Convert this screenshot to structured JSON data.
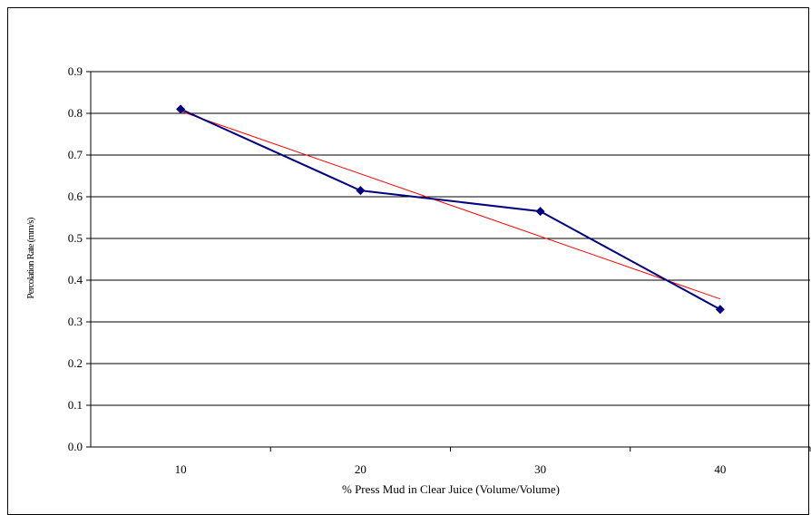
{
  "chart_data": {
    "type": "line",
    "title": "",
    "xlabel": "% Press Mud in Clear Juice (Volume/Volume)",
    "ylabel": "Percolation Rate (mm/s)",
    "categories": [
      "10",
      "20",
      "30",
      "40"
    ],
    "x": [
      10,
      20,
      30,
      40
    ],
    "ylim": [
      0,
      0.9
    ],
    "yticks": [
      "0.0",
      "0.1",
      "0.2",
      "0.3",
      "0.4",
      "0.5",
      "0.6",
      "0.7",
      "0.8",
      "0.9"
    ],
    "grid": true,
    "legend": "none",
    "series": [
      {
        "values": [
          0.81,
          0.615,
          0.565,
          0.33
        ],
        "color": "#000080",
        "marker": "diamond"
      }
    ],
    "trendline": {
      "type": "linear",
      "values": [
        0.805,
        0.655,
        0.505,
        0.355
      ],
      "color": "#ff0000"
    }
  }
}
